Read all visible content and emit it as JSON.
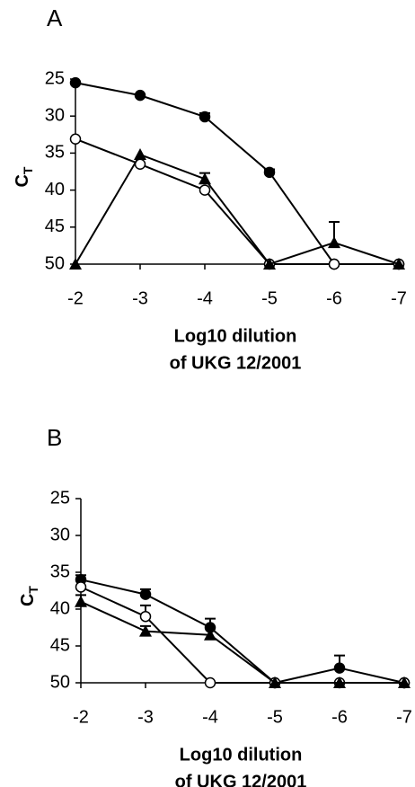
{
  "chart_data": [
    {
      "type": "line",
      "title": "A",
      "xlabel": [
        "Log10 dilution",
        "of UKG 12/2001"
      ],
      "ylabel": [
        "C",
        "T"
      ],
      "x": [
        -2,
        -3,
        -4,
        -5,
        -6,
        -7
      ],
      "xlim": [
        -2,
        -7
      ],
      "xticks": [
        -2,
        -3,
        -4,
        -5,
        -6,
        -7
      ],
      "ylim": [
        25,
        50
      ],
      "yticks": [
        25,
        30,
        35,
        40,
        45,
        50
      ],
      "y_inverted": true,
      "color": "#000000",
      "series": [
        {
          "marker": "filled-circle",
          "color": "#000000",
          "values": [
            25.5,
            27.2,
            30.1,
            37.6,
            50,
            50
          ],
          "errors": [
            null,
            null,
            0.5,
            0.4,
            null,
            null
          ]
        },
        {
          "marker": "open-circle",
          "color": "#000000",
          "values": [
            33.1,
            36.5,
            40.0,
            50,
            50,
            50
          ],
          "errors": [
            null,
            null,
            null,
            null,
            null,
            null
          ]
        },
        {
          "marker": "triangle",
          "color": "#000000",
          "values": [
            50,
            35.2,
            38.5,
            50,
            47.1,
            50
          ],
          "errors": [
            null,
            null,
            0.8,
            null,
            2.8,
            null
          ]
        }
      ]
    },
    {
      "type": "line",
      "title": "B",
      "xlabel": [
        "Log10 dilution",
        "of UKG 12/2001"
      ],
      "ylabel": [
        "C",
        "T"
      ],
      "x": [
        -2,
        -3,
        -4,
        -5,
        -6,
        -7
      ],
      "xlim": [
        -2,
        -7
      ],
      "xticks": [
        -2,
        -3,
        -4,
        -5,
        -6,
        -7
      ],
      "ylim": [
        25,
        50
      ],
      "yticks": [
        25,
        30,
        35,
        40,
        45,
        50
      ],
      "y_inverted": true,
      "color": "#000000",
      "series": [
        {
          "marker": "filled-circle",
          "color": "#000000",
          "values": [
            36,
            38,
            42.5,
            50,
            48,
            50
          ],
          "errors": [
            0.6,
            0.7,
            1.2,
            null,
            1.7,
            null
          ]
        },
        {
          "marker": "open-circle",
          "color": "#000000",
          "values": [
            37,
            41,
            50,
            50,
            50,
            50
          ],
          "errors": [
            null,
            1.5,
            null,
            null,
            null,
            null
          ]
        },
        {
          "marker": "triangle",
          "color": "#000000",
          "values": [
            39,
            43,
            43.5,
            50,
            50,
            50
          ],
          "errors": [
            0.9,
            0.7,
            null,
            null,
            null,
            null
          ]
        }
      ]
    }
  ]
}
